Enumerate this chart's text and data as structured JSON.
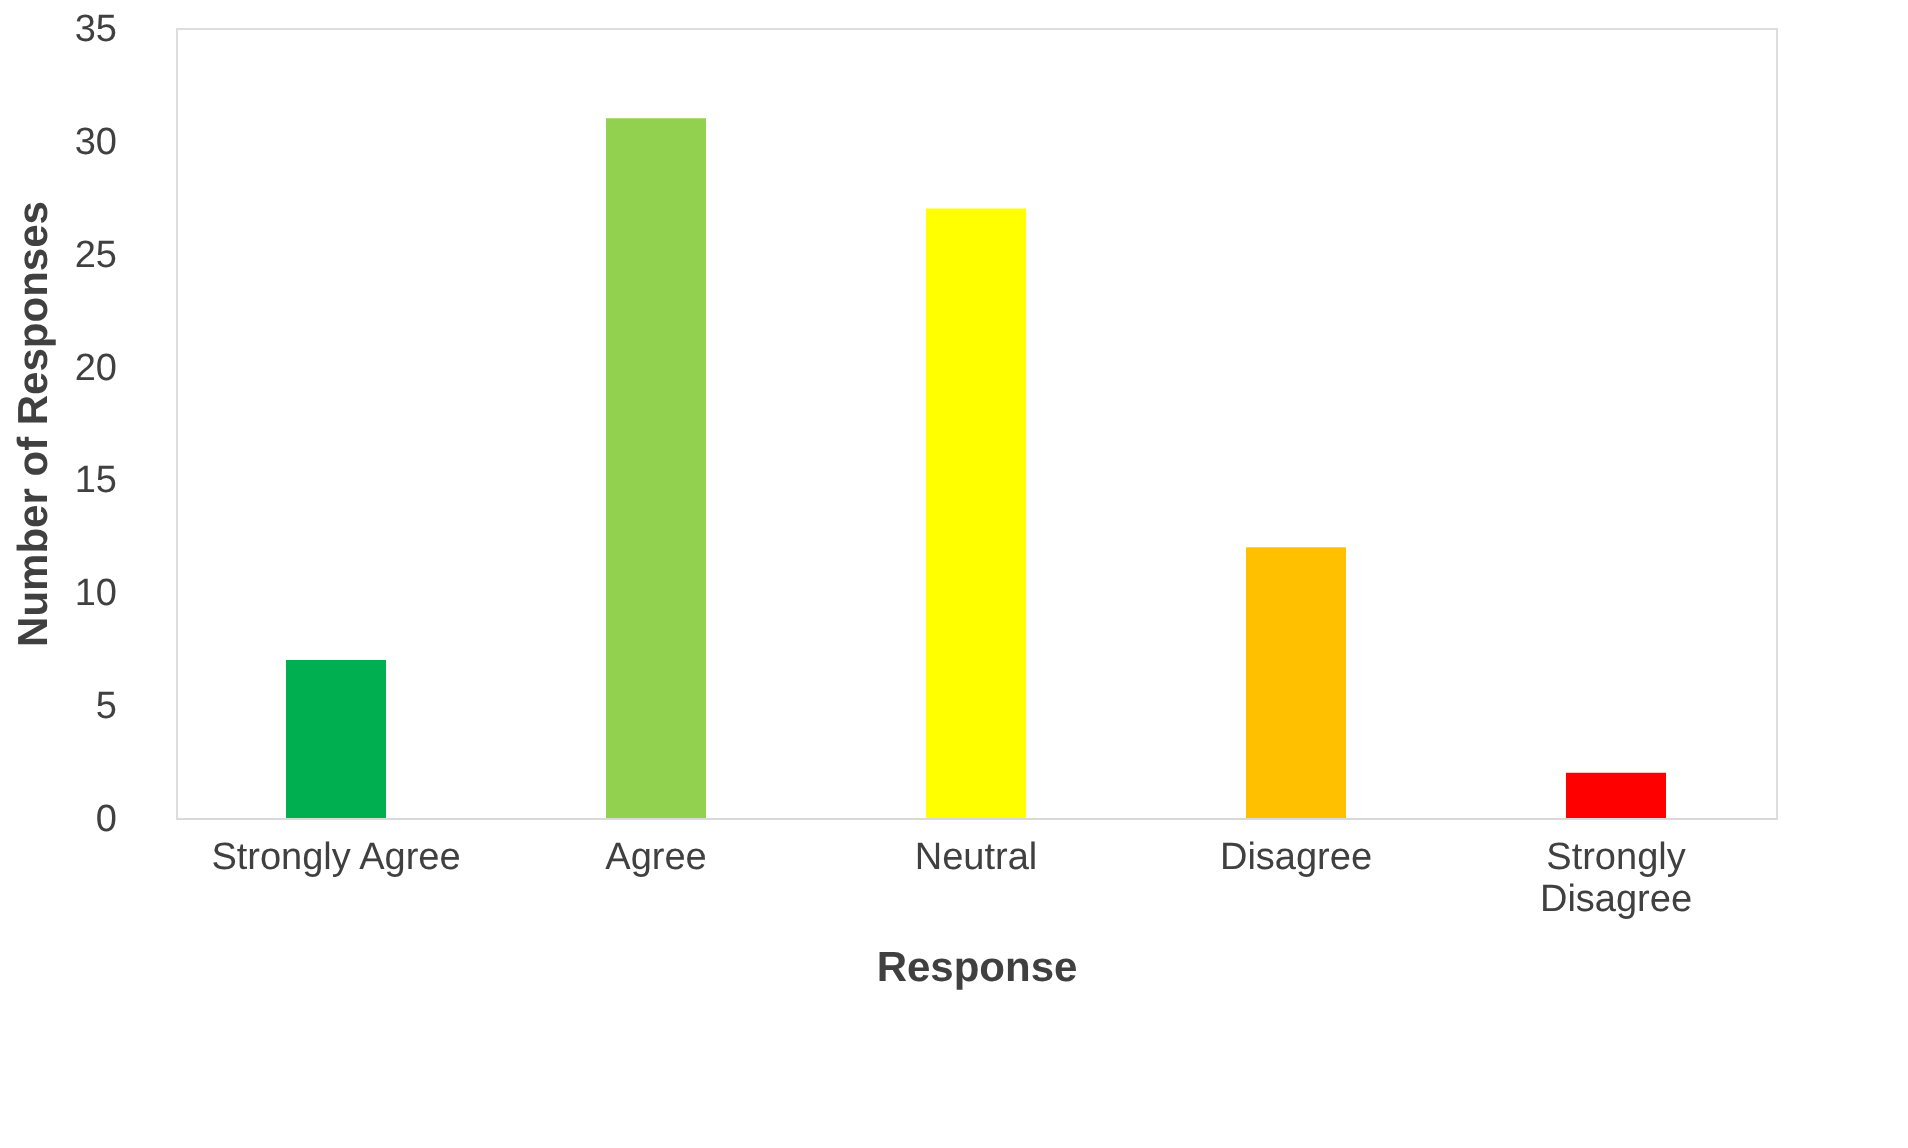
{
  "chart_data": {
    "type": "bar",
    "xlabel": "Response",
    "ylabel": "Number of Responses",
    "categories": [
      "Strongly Agree",
      "Agree",
      "Neutral",
      "Disagree",
      "Strongly Disagree"
    ],
    "values": [
      7,
      31,
      27,
      12,
      2
    ],
    "colors": [
      "#00b050",
      "#92d050",
      "#ffff00",
      "#ffc000",
      "#ff0000"
    ],
    "ylim": [
      0,
      35
    ],
    "yticks": [
      0,
      5,
      10,
      15,
      20,
      25,
      30,
      35
    ],
    "grid": false,
    "legend": false
  }
}
